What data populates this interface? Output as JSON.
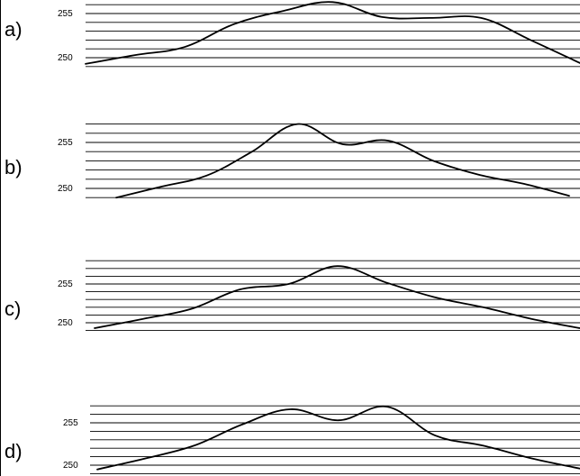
{
  "chart_data": [
    {
      "type": "line",
      "panel_label": "a)",
      "yticks": [
        250,
        255
      ],
      "ylim": [
        249,
        256
      ],
      "x": [
        0,
        10,
        20,
        30,
        40,
        50,
        60,
        70,
        80,
        90,
        100
      ],
      "series": [
        {
          "values": [
            249.3,
            250.3,
            251.2,
            253.8,
            255.3,
            256.3,
            254.6,
            254.5,
            254.5,
            252.0,
            249.4
          ]
        }
      ]
    },
    {
      "type": "line",
      "panel_label": "b)",
      "yticks": [
        250,
        255
      ],
      "ylim": [
        249,
        256
      ],
      "x": [
        0,
        10,
        20,
        30,
        40,
        50,
        60,
        70,
        80,
        90,
        100
      ],
      "series": [
        {
          "values": [
            249.0,
            250.2,
            251.4,
            254.0,
            257.0,
            254.8,
            255.2,
            253.0,
            251.5,
            250.5,
            249.2
          ]
        }
      ]
    },
    {
      "type": "line",
      "panel_label": "c)",
      "yticks": [
        250,
        255
      ],
      "ylim": [
        249,
        256
      ],
      "x": [
        0,
        10,
        20,
        30,
        40,
        50,
        60,
        70,
        80,
        90,
        100
      ],
      "series": [
        {
          "values": [
            249.3,
            250.5,
            251.8,
            254.3,
            255.0,
            257.3,
            255.2,
            253.3,
            252.0,
            250.5,
            249.3
          ]
        }
      ]
    },
    {
      "type": "line",
      "panel_label": "d)",
      "yticks": [
        250,
        255
      ],
      "ylim": [
        249,
        256
      ],
      "x": [
        0,
        10,
        20,
        30,
        40,
        50,
        60,
        70,
        80,
        90,
        100
      ],
      "series": [
        {
          "values": [
            249.5,
            250.8,
            252.3,
            254.8,
            256.6,
            255.3,
            256.9,
            253.5,
            252.3,
            250.8,
            249.6
          ]
        }
      ]
    }
  ]
}
